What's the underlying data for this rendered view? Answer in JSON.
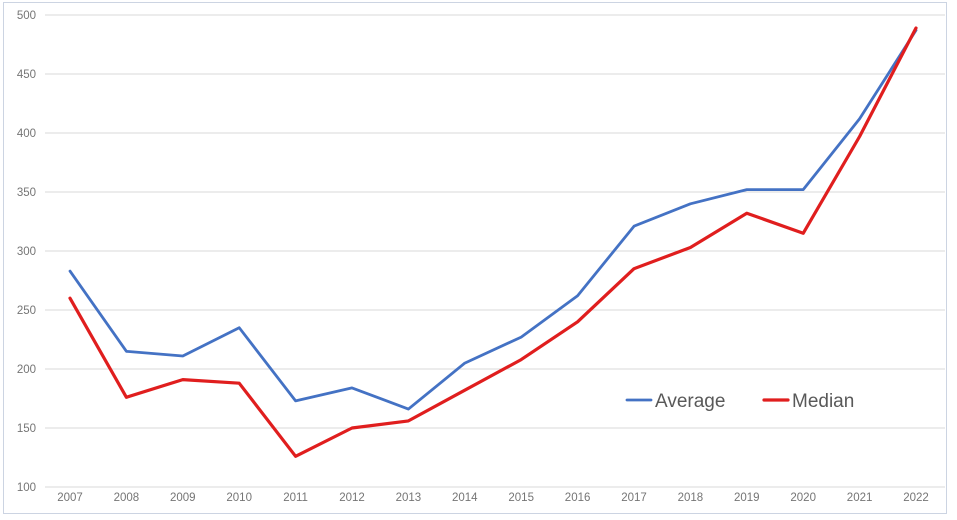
{
  "chart_data": {
    "type": "line",
    "title": "",
    "xlabel": "",
    "ylabel": "",
    "categories": [
      "2007",
      "2008",
      "2009",
      "2010",
      "2011",
      "2012",
      "2013",
      "2014",
      "2015",
      "2016",
      "2017",
      "2018",
      "2019",
      "2020",
      "2021",
      "2022"
    ],
    "series": [
      {
        "name": "Average",
        "color": "#4472c4",
        "values": [
          283,
          215,
          211,
          235,
          173,
          184,
          166,
          205,
          227,
          262,
          321,
          340,
          352,
          352,
          412,
          487
        ]
      },
      {
        "name": "Median",
        "color": "#e01e1e",
        "values": [
          260,
          176,
          191,
          188,
          126,
          150,
          156,
          182,
          208,
          240,
          285,
          303,
          332,
          315,
          397,
          489
        ]
      }
    ],
    "ylim": [
      100,
      500
    ],
    "ytick_step": 50,
    "yticks": [
      100,
      150,
      200,
      250,
      300,
      350,
      400,
      450,
      500
    ],
    "grid": "horizontal",
    "legend_position": "inside lower right"
  },
  "colors": {
    "grid": "#d9d9d9",
    "tick_text": "#757575",
    "legend_text": "#595959",
    "background": "#ffffff",
    "frame_border": "#ccd4e2",
    "average_line": "#4472c4",
    "median_line": "#e01e1e"
  }
}
